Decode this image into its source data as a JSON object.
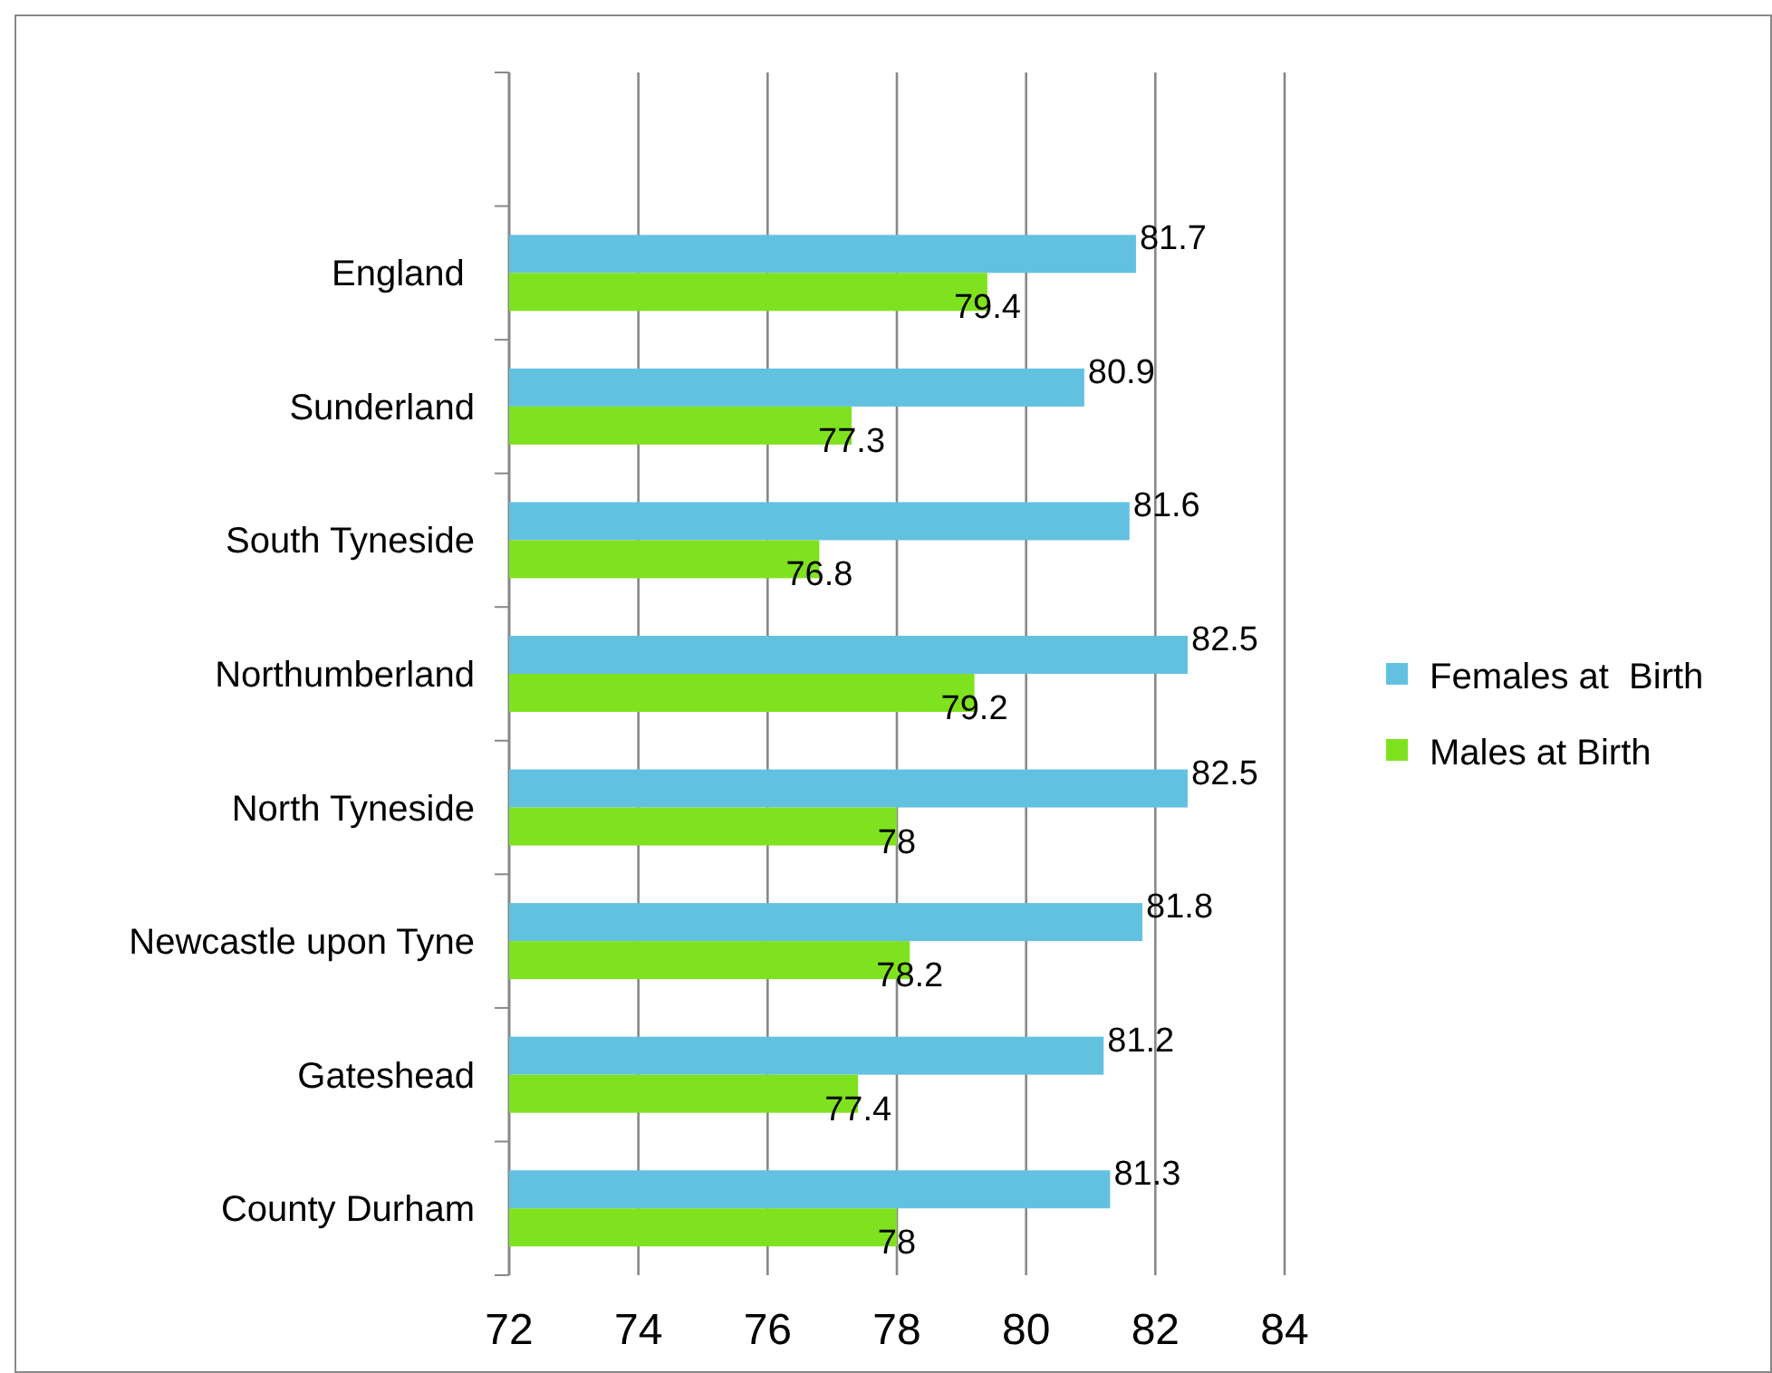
{
  "chart_data": {
    "type": "bar",
    "orientation": "horizontal",
    "categories": [
      null,
      "England ",
      "Sunderland",
      "South Tyneside",
      "Northumberland",
      "North Tyneside",
      "Newcastle upon Tyne",
      "Gateshead",
      "County Durham"
    ],
    "series": [
      {
        "name": "Females at  Birth",
        "color": "#63c1e0",
        "values": [
          null,
          81.7,
          80.9,
          81.6,
          82.5,
          82.5,
          81.8,
          81.2,
          81.3
        ]
      },
      {
        "name": "Males at Birth",
        "color": "#7fe21f",
        "values": [
          null,
          79.4,
          77.3,
          76.8,
          79.2,
          78,
          78.2,
          77.4,
          78
        ]
      }
    ],
    "xlim": [
      72,
      84
    ],
    "xticks": [
      72,
      74,
      76,
      78,
      80,
      82,
      84
    ],
    "grid": "x",
    "legend": "right",
    "data_labels": true
  }
}
